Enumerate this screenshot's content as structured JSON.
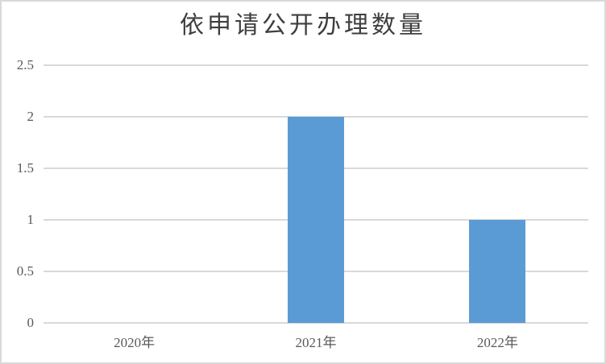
{
  "chart_data": {
    "type": "bar",
    "title": "依申请公开办理数量",
    "categories": [
      "2020年",
      "2021年",
      "2022年"
    ],
    "values": [
      0,
      2,
      1
    ],
    "xlabel": "",
    "ylabel": "",
    "ylim": [
      0,
      2.5
    ],
    "yticks": [
      0,
      0.5,
      1,
      1.5,
      2,
      2.5
    ],
    "ytick_labels": [
      "0",
      "0.5",
      "1",
      "1.5",
      "2",
      "2.5"
    ],
    "grid": true,
    "legend": false,
    "bar_color": "#5b9bd5"
  },
  "colors": {
    "bar": "#5b9bd5",
    "gridline": "#d9d9d9",
    "axis_label": "#595959",
    "title": "#3f3f3f",
    "border": "#d9d9d9",
    "background": "#ffffff"
  }
}
